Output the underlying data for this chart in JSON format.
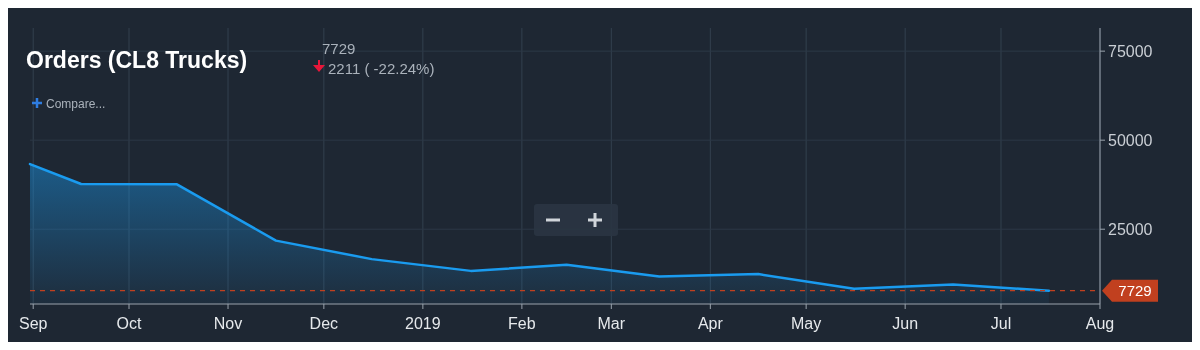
{
  "chart_data": {
    "type": "area",
    "title": "Orders (CL8 Trucks)",
    "subtitle": "7729",
    "annotations": [
      "2211 ( -22.24%)",
      "Compare..."
    ],
    "x": [
      "2018-08-31",
      "2018-09-16",
      "2018-10-16",
      "2018-11-16",
      "2018-12-16",
      "2019-01-16",
      "2019-02-15",
      "2019-03-16",
      "2019-04-16",
      "2019-05-16",
      "2019-06-16",
      "2019-07-16"
    ],
    "series": [
      {
        "color": "#1a9bef",
        "values": [
          43300,
          37700,
          37600,
          21800,
          16600,
          13300,
          15000,
          11700,
          12400,
          8300,
          9500,
          7729
        ]
      }
    ],
    "xlim": [
      "2018-08-31",
      "2019-08-01"
    ],
    "xticks": [
      {
        "value": "2018-09-01",
        "label": "Sep"
      },
      {
        "value": "2018-10-01",
        "label": "Oct"
      },
      {
        "value": "2018-11-01",
        "label": "Nov"
      },
      {
        "value": "2018-12-01",
        "label": "Dec"
      },
      {
        "value": "2019-01-01",
        "label": "2019"
      },
      {
        "value": "2019-02-01",
        "label": "Feb"
      },
      {
        "value": "2019-03-01",
        "label": "Mar"
      },
      {
        "value": "2019-04-01",
        "label": "Apr"
      },
      {
        "value": "2019-05-01",
        "label": "May"
      },
      {
        "value": "2019-06-01",
        "label": "Jun"
      },
      {
        "value": "2019-07-01",
        "label": "Jul"
      },
      {
        "value": "2019-08-01",
        "label": "Aug"
      }
    ],
    "ylim": [
      4000,
      81500
    ],
    "yticks": [
      25000,
      50000,
      75000
    ],
    "ref_lines": [
      {
        "axis": "y",
        "value": 7729,
        "label": "7729",
        "color": "#c1401f",
        "line_style": "dashed"
      }
    ],
    "grid": true,
    "marker": "none",
    "line_style": "solid"
  }
}
